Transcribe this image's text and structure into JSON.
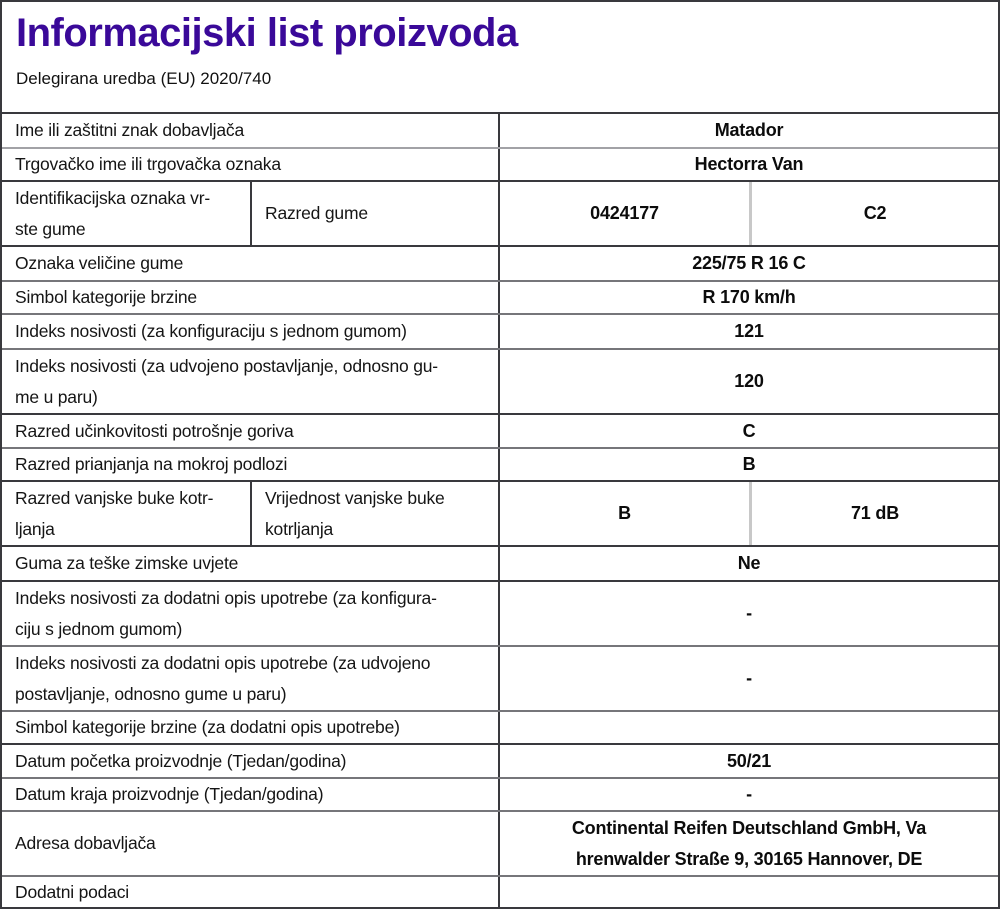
{
  "header": {
    "title": "Informacijski list proizvoda",
    "subtitle": "Delegirana uredba (EU) 2020/740"
  },
  "colors": {
    "title_accent": "#3a0999",
    "border_dark": "#39393d",
    "border_gray": "#76767a",
    "split_divider_light": "#c8c8c8",
    "text": "#151515"
  },
  "table": {
    "rows": [
      {
        "label": "Ime ili zaštitni znak dobavljača",
        "value": "Matador"
      },
      {
        "label": "Trgovačko ime ili trgovačka oznaka",
        "value": "Hectorra Van"
      },
      {
        "label": "Identifikacijska oznaka vr-\nste gume",
        "sublabel": "Razred gume",
        "value": "0424177",
        "value2": "C2"
      },
      {
        "label": "Oznaka veličine gume",
        "value": "225/75 R 16 C"
      },
      {
        "label": "Simbol kategorije brzine",
        "value": "R 170 km/h"
      },
      {
        "label": "Indeks nosivosti (za konfiguraciju s jednom gumom)",
        "value": "121"
      },
      {
        "label": "Indeks nosivosti (za udvojeno postavljanje, odnosno gu-\nme u paru)",
        "value": "120"
      },
      {
        "label": "Razred učinkovitosti potrošnje goriva",
        "value": "C"
      },
      {
        "label": "Razred prianjanja na mokroj podlozi",
        "value": "B"
      },
      {
        "label": "Razred vanjske buke kotr-\nljanja",
        "sublabel": "Vrijednost vanjske buke\nkotrljanja",
        "value": "B",
        "value2": "71 dB"
      },
      {
        "label": "Guma za teške zimske uvjete",
        "value": "Ne"
      },
      {
        "label": "Indeks nosivosti za dodatni opis upotrebe (za konfigura-\nciju s jednom gumom)",
        "value": "-"
      },
      {
        "label": "Indeks nosivosti za dodatni opis upotrebe (za udvojeno\npostavljanje, odnosno gume u paru)",
        "value": "-"
      },
      {
        "label": "Simbol kategorije brzine (za dodatni opis upotrebe)",
        "value": ""
      },
      {
        "label": "Datum početka proizvodnje (Tjedan/godina)",
        "value": "50/21"
      },
      {
        "label": "Datum kraja proizvodnje (Tjedan/godina)",
        "value": "-"
      },
      {
        "label": "Adresa dobavljača",
        "value": "Continental Reifen Deutschland GmbH, Va\nhrenwalder Straße 9, 30165 Hannover, DE"
      },
      {
        "label": "Dodatni podaci",
        "value": ""
      }
    ]
  }
}
